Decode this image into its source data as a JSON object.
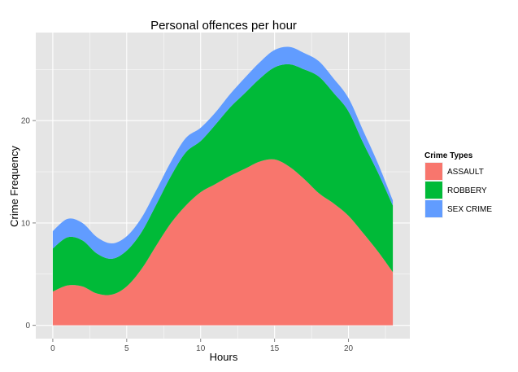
{
  "chart_data": {
    "type": "area",
    "stacked": true,
    "title": "Personal offences per hour",
    "xlabel": "Hours",
    "ylabel": "Crime Frequency",
    "xlim": [
      -1.15,
      24.15
    ],
    "ylim": [
      -1.3,
      28.6
    ],
    "xticks": [
      0,
      5,
      10,
      15,
      20
    ],
    "yticks": [
      0,
      10,
      20
    ],
    "grid": true,
    "legend": {
      "title": "Crime Types",
      "position": "right"
    },
    "colors": {
      "ASSAULT": "#F8766D",
      "ROBBERY": "#00BA38",
      "SEX CRIME": "#619CFF"
    },
    "x": [
      0,
      1,
      2,
      3,
      4,
      5,
      6,
      7,
      8,
      9,
      10,
      11,
      12,
      13,
      14,
      15,
      16,
      17,
      18,
      19,
      20,
      21,
      22,
      23
    ],
    "series": [
      {
        "name": "ASSAULT",
        "values": [
          3.3,
          3.9,
          3.8,
          3.1,
          3.0,
          3.8,
          5.5,
          7.8,
          10.0,
          11.7,
          13.0,
          13.8,
          14.6,
          15.3,
          16.0,
          16.2,
          15.5,
          14.3,
          12.9,
          11.9,
          10.7,
          9.0,
          7.2,
          5.2
        ]
      },
      {
        "name": "ROBBERY",
        "values": [
          4.2,
          4.7,
          4.5,
          3.9,
          3.5,
          3.5,
          3.6,
          4.0,
          4.6,
          5.2,
          5.0,
          5.8,
          6.7,
          7.4,
          8.1,
          9.0,
          10.0,
          10.7,
          11.4,
          10.8,
          10.2,
          8.8,
          7.7,
          6.5
        ]
      },
      {
        "name": "SEX CRIME",
        "values": [
          1.7,
          1.8,
          1.7,
          1.6,
          1.5,
          1.4,
          1.4,
          1.4,
          1.4,
          1.4,
          1.3,
          1.2,
          1.3,
          1.5,
          1.6,
          1.7,
          1.7,
          1.6,
          1.5,
          1.4,
          1.3,
          1.2,
          0.9,
          0.5
        ]
      }
    ]
  }
}
